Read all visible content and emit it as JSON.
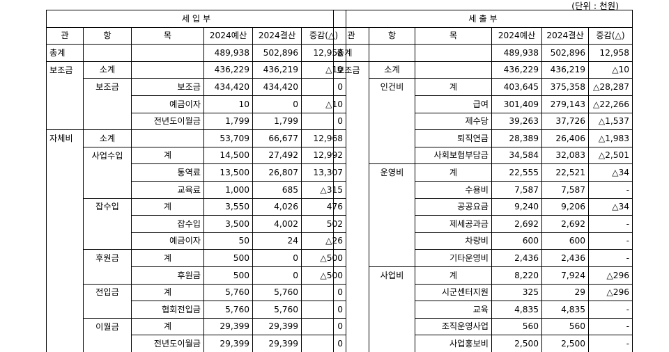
{
  "unit": "(단위 : 천원)",
  "left": {
    "title": "세 입 부",
    "headers": [
      "관",
      "항",
      "목",
      "2024예산",
      "2024결산",
      "증감(△)"
    ],
    "rows": [
      {
        "gwan": "총계",
        "hang": "",
        "mok": "",
        "a": "489,938",
        "b": "502,896",
        "c": "12,958",
        "gt": true,
        "ht": true,
        "mt": true
      },
      {
        "gwan": "보조금",
        "hang": "소계",
        "mok": "",
        "a": "436,229",
        "b": "436,219",
        "c": "△10",
        "gt": true,
        "ht": true,
        "mt": true
      },
      {
        "gwan": "",
        "hang": "보조금",
        "mok": "보조금",
        "a": "434,420",
        "b": "434,420",
        "c": "0",
        "gt": false,
        "ht": true,
        "mt": true
      },
      {
        "gwan": "",
        "hang": "",
        "mok": "예금이자",
        "a": "10",
        "b": "0",
        "c": "△10",
        "gt": false,
        "ht": false,
        "mt": true
      },
      {
        "gwan": "",
        "hang": "",
        "mok": "전년도이월금",
        "a": "1,799",
        "b": "1,799",
        "c": "0",
        "gt": false,
        "ht": false,
        "mt": true
      },
      {
        "gwan": "자체비",
        "hang": "소계",
        "mok": "",
        "a": "53,709",
        "b": "66,677",
        "c": "12,968",
        "gt": true,
        "ht": true,
        "mt": true
      },
      {
        "gwan": "",
        "hang": "사업수입",
        "mok": "계",
        "a": "14,500",
        "b": "27,492",
        "c": "12,992",
        "gt": false,
        "ht": true,
        "mt": true
      },
      {
        "gwan": "",
        "hang": "",
        "mok": "통역료",
        "a": "13,500",
        "b": "26,807",
        "c": "13,307",
        "gt": false,
        "ht": false,
        "mt": true
      },
      {
        "gwan": "",
        "hang": "",
        "mok": "교육료",
        "a": "1,000",
        "b": "685",
        "c": "△315",
        "gt": false,
        "ht": false,
        "mt": true
      },
      {
        "gwan": "",
        "hang": "잡수입",
        "mok": "계",
        "a": "3,550",
        "b": "4,026",
        "c": "476",
        "gt": false,
        "ht": true,
        "mt": true
      },
      {
        "gwan": "",
        "hang": "",
        "mok": "잡수입",
        "a": "3,500",
        "b": "4,002",
        "c": "502",
        "gt": false,
        "ht": false,
        "mt": true
      },
      {
        "gwan": "",
        "hang": "",
        "mok": "예금이자",
        "a": "50",
        "b": "24",
        "c": "△26",
        "gt": false,
        "ht": false,
        "mt": true
      },
      {
        "gwan": "",
        "hang": "후원금",
        "mok": "계",
        "a": "500",
        "b": "0",
        "c": "△500",
        "gt": false,
        "ht": true,
        "mt": true
      },
      {
        "gwan": "",
        "hang": "",
        "mok": "후원금",
        "a": "500",
        "b": "0",
        "c": "△500",
        "gt": false,
        "ht": false,
        "mt": true
      },
      {
        "gwan": "",
        "hang": "전입금",
        "mok": "계",
        "a": "5,760",
        "b": "5,760",
        "c": "0",
        "gt": false,
        "ht": true,
        "mt": true
      },
      {
        "gwan": "",
        "hang": "",
        "mok": "협회전입금",
        "a": "5,760",
        "b": "5,760",
        "c": "0",
        "gt": false,
        "ht": false,
        "mt": true
      },
      {
        "gwan": "",
        "hang": "이월금",
        "mok": "계",
        "a": "29,399",
        "b": "29,399",
        "c": "0",
        "gt": false,
        "ht": true,
        "mt": true
      },
      {
        "gwan": "",
        "hang": "",
        "mok": "전년도이월금",
        "a": "29,399",
        "b": "29,399",
        "c": "0",
        "gt": false,
        "ht": false,
        "mt": true
      }
    ]
  },
  "right": {
    "title": "세 출 부",
    "headers": [
      "관",
      "항",
      "목",
      "2024예산",
      "2024결산",
      "증감(△)"
    ],
    "rows": [
      {
        "gwan": "총계",
        "hang": "",
        "mok": "",
        "a": "489,938",
        "b": "502,896",
        "c": "12,958",
        "gt": true,
        "ht": true,
        "mt": true
      },
      {
        "gwan": "보조금",
        "hang": "소계",
        "mok": "",
        "a": "436,229",
        "b": "436,219",
        "c": "△10",
        "gt": true,
        "ht": true,
        "mt": true
      },
      {
        "gwan": "",
        "hang": "인건비",
        "mok": "계",
        "a": "403,645",
        "b": "375,358",
        "c": "△28,287",
        "gt": false,
        "ht": true,
        "mt": true
      },
      {
        "gwan": "",
        "hang": "",
        "mok": "급여",
        "a": "301,409",
        "b": "279,143",
        "c": "△22,266",
        "gt": false,
        "ht": false,
        "mt": true
      },
      {
        "gwan": "",
        "hang": "",
        "mok": "제수당",
        "a": "39,263",
        "b": "37,726",
        "c": "△1,537",
        "gt": false,
        "ht": false,
        "mt": true
      },
      {
        "gwan": "",
        "hang": "",
        "mok": "퇴직연금",
        "a": "28,389",
        "b": "26,406",
        "c": "△1,983",
        "gt": false,
        "ht": false,
        "mt": true
      },
      {
        "gwan": "",
        "hang": "",
        "mok": "사회보험부담금",
        "a": "34,584",
        "b": "32,083",
        "c": "△2,501",
        "gt": false,
        "ht": false,
        "mt": true
      },
      {
        "gwan": "",
        "hang": "운영비",
        "mok": "계",
        "a": "22,555",
        "b": "22,521",
        "c": "△34",
        "gt": false,
        "ht": true,
        "mt": true
      },
      {
        "gwan": "",
        "hang": "",
        "mok": "수용비",
        "a": "7,587",
        "b": "7,587",
        "c": "-",
        "gt": false,
        "ht": false,
        "mt": true
      },
      {
        "gwan": "",
        "hang": "",
        "mok": "공공요금",
        "a": "9,240",
        "b": "9,206",
        "c": "△34",
        "gt": false,
        "ht": false,
        "mt": true
      },
      {
        "gwan": "",
        "hang": "",
        "mok": "제세공과금",
        "a": "2,692",
        "b": "2,692",
        "c": "-",
        "gt": false,
        "ht": false,
        "mt": true
      },
      {
        "gwan": "",
        "hang": "",
        "mok": "차량비",
        "a": "600",
        "b": "600",
        "c": "-",
        "gt": false,
        "ht": false,
        "mt": true
      },
      {
        "gwan": "",
        "hang": "",
        "mok": "기타운영비",
        "a": "2,436",
        "b": "2,436",
        "c": "-",
        "gt": false,
        "ht": false,
        "mt": true
      },
      {
        "gwan": "",
        "hang": "사업비",
        "mok": "계",
        "a": "8,220",
        "b": "7,924",
        "c": "△296",
        "gt": false,
        "ht": true,
        "mt": true
      },
      {
        "gwan": "",
        "hang": "",
        "mok": "시군센터지원",
        "a": "325",
        "b": "29",
        "c": "△296",
        "gt": false,
        "ht": false,
        "mt": true
      },
      {
        "gwan": "",
        "hang": "",
        "mok": "교육",
        "a": "4,835",
        "b": "4,835",
        "c": "-",
        "gt": false,
        "ht": false,
        "mt": true
      },
      {
        "gwan": "",
        "hang": "",
        "mok": "조직운영사업",
        "a": "560",
        "b": "560",
        "c": "-",
        "gt": false,
        "ht": false,
        "mt": true
      },
      {
        "gwan": "",
        "hang": "",
        "mok": "사업홍보비",
        "a": "2,500",
        "b": "2,500",
        "c": "-",
        "gt": false,
        "ht": false,
        "mt": true
      }
    ]
  }
}
